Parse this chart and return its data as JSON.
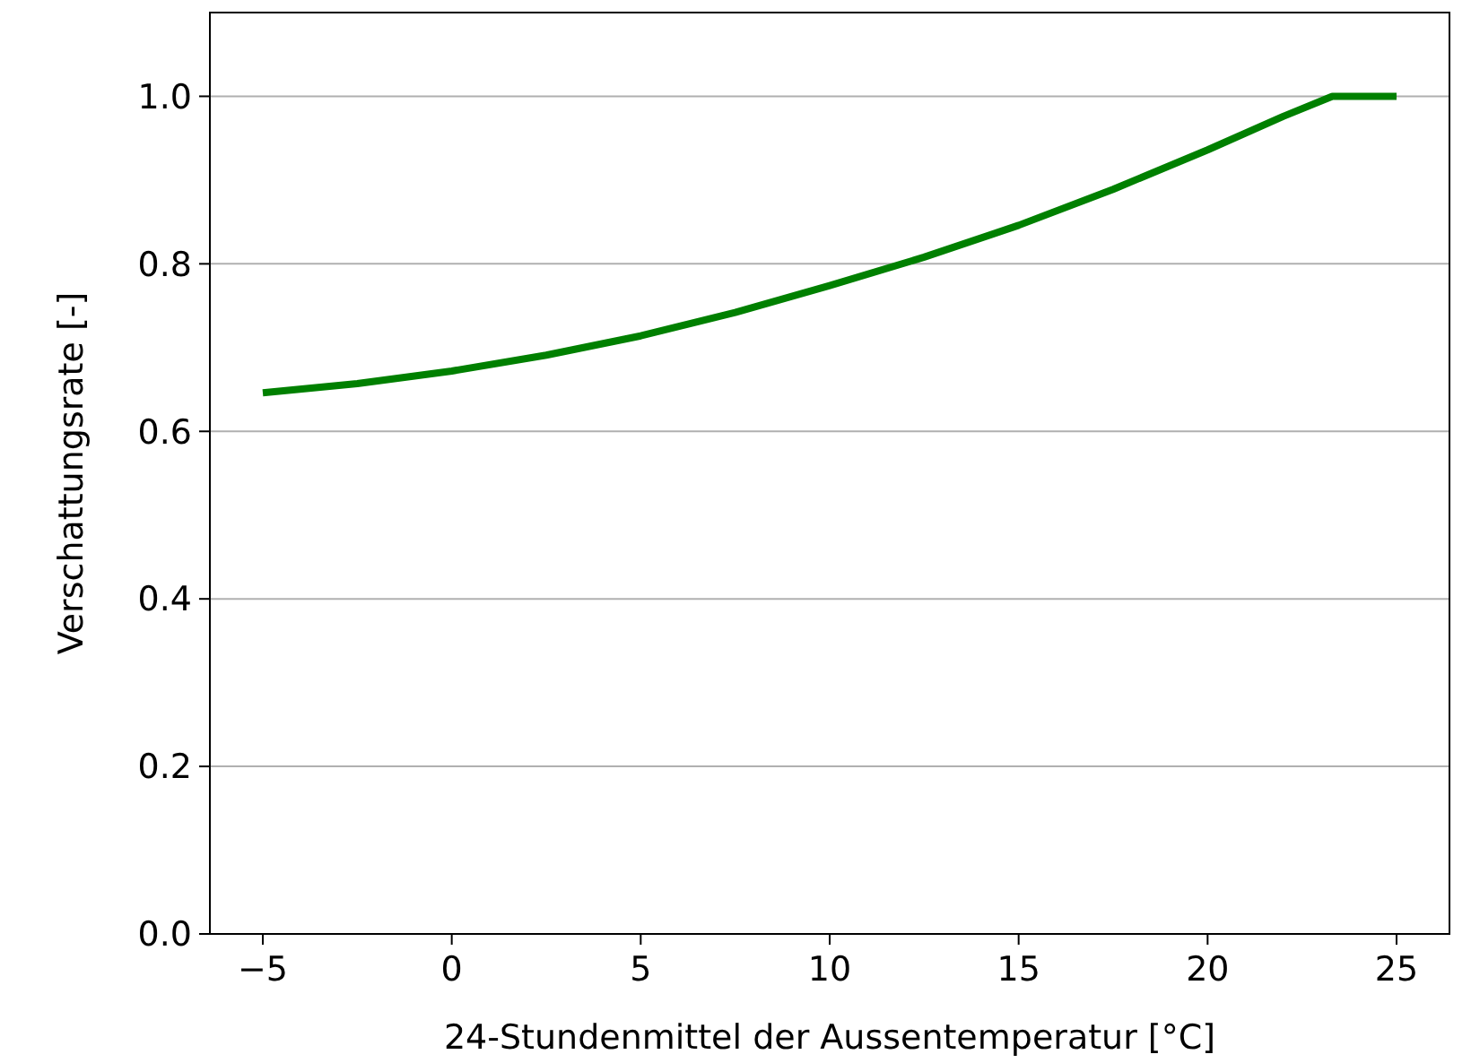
{
  "chart_data": {
    "type": "line",
    "xlabel": "24-Stundenmittel der Aussentemperatur [°C]",
    "ylabel": "Verschattungsrate [-]",
    "x": [
      -5,
      -2.5,
      0,
      2.5,
      5,
      7.5,
      10,
      12.5,
      15,
      17.5,
      20,
      22,
      23.3,
      25
    ],
    "series": [
      {
        "color": "#008000",
        "values": [
          0.646,
          0.657,
          0.672,
          0.691,
          0.714,
          0.742,
          0.774,
          0.808,
          0.846,
          0.889,
          0.936,
          0.976,
          1.0,
          1.0
        ]
      }
    ],
    "xlim": [
      -6.4,
      26.4
    ],
    "ylim": [
      0,
      1.1
    ],
    "xticks": [
      {
        "value": -5,
        "label": "−5"
      },
      0,
      5,
      10,
      15,
      20,
      25
    ],
    "yticks": [
      {
        "value": 0,
        "label": "0.0"
      },
      0.2,
      0.4,
      0.6,
      0.8,
      {
        "value": 1,
        "label": "1.0"
      }
    ],
    "grid": "y",
    "marker": "none",
    "line_style": "solid"
  }
}
